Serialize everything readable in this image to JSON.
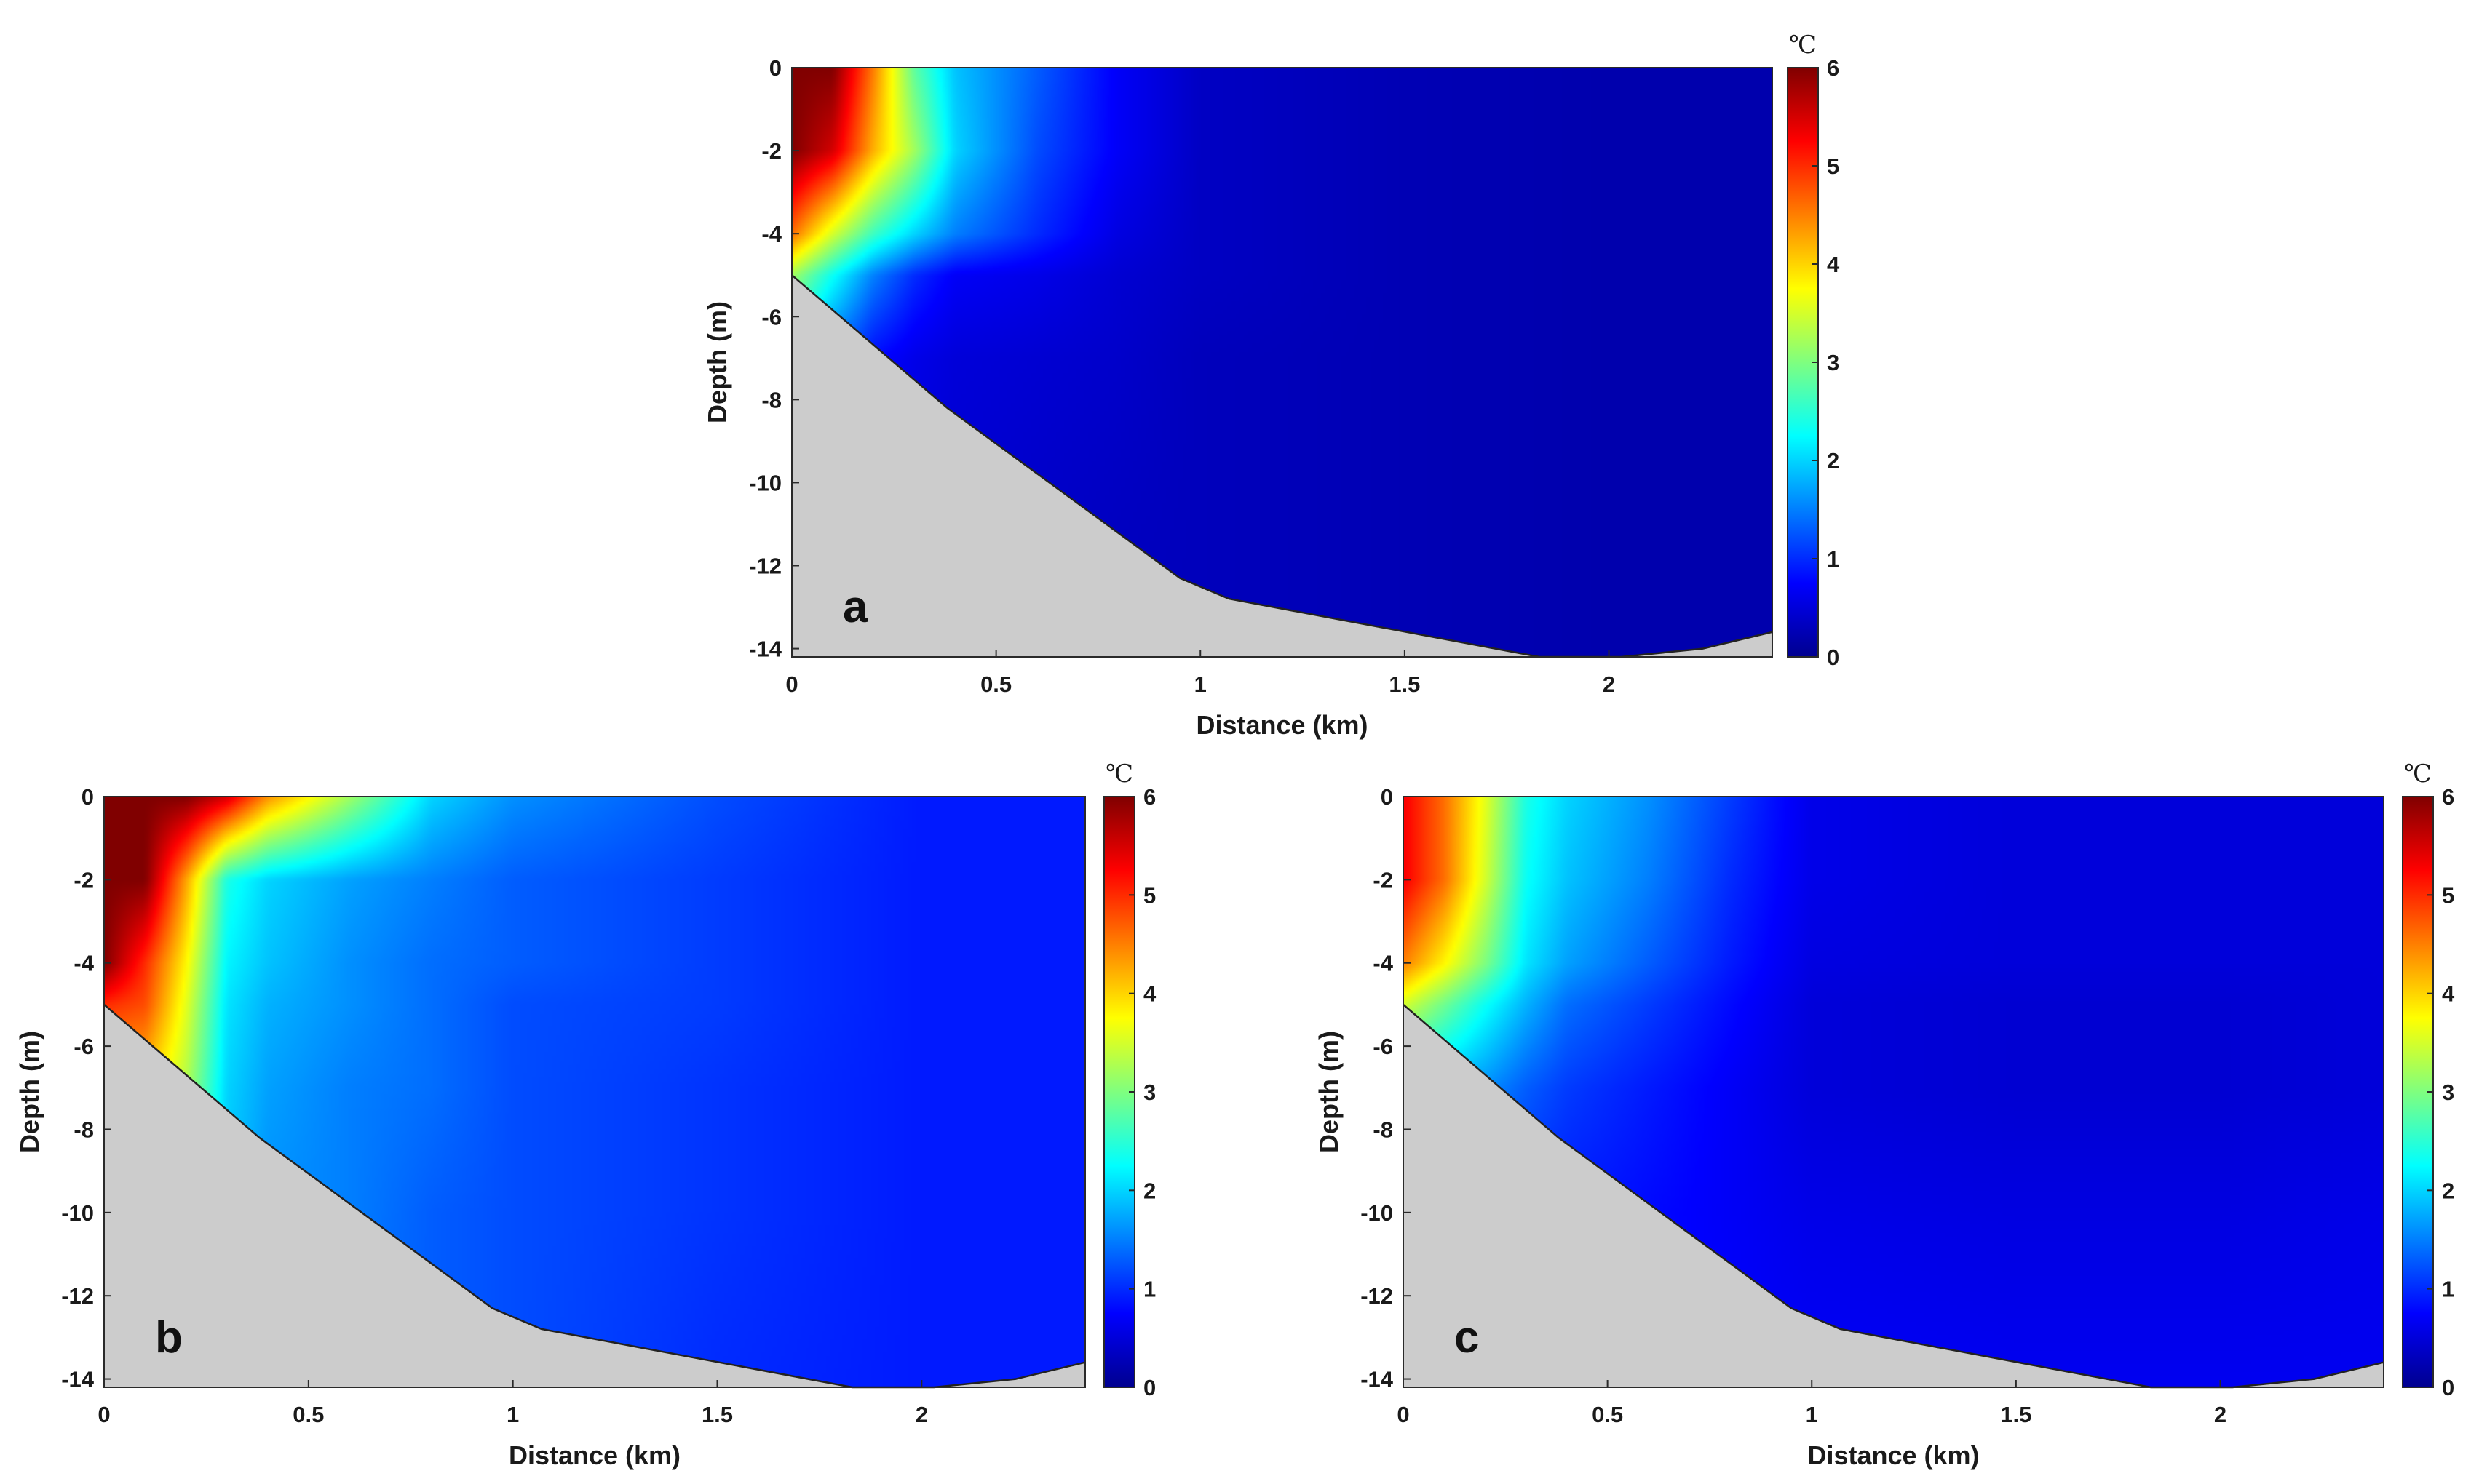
{
  "chart_data": [
    {
      "type": "heatmap",
      "panel_label": "a",
      "xlabel": "Distance (km)",
      "ylabel": "Depth (m)",
      "xlim": [
        0,
        2.4
      ],
      "ylim": [
        -14.2,
        0
      ],
      "xticks": [
        "0",
        "0.5",
        "1",
        "1.5",
        "2"
      ],
      "yticks": [
        "0",
        "-2",
        "-4",
        "-6",
        "-8",
        "-10",
        "-12",
        "-14"
      ],
      "colorbar": {
        "unit": "℃",
        "range": [
          0,
          6
        ],
        "ticks": [
          "0",
          "1",
          "2",
          "3",
          "4",
          "5",
          "6"
        ]
      },
      "bottom_profile": {
        "x": [
          0,
          0.38,
          0.95,
          1.07,
          1.83,
          2.03,
          2.23,
          2.4
        ],
        "depth": [
          -5.0,
          -8.2,
          -12.3,
          -12.8,
          -14.2,
          -14.2,
          -14.0,
          -13.6
        ]
      },
      "temperature_field": {
        "x": [
          0,
          0.1,
          0.2,
          0.3,
          0.4,
          0.6,
          0.8,
          1.0,
          1.5,
          2.0,
          2.4
        ],
        "depth": [
          0,
          -2,
          -4,
          -5,
          -7,
          -10,
          -14
        ],
        "values": [
          [
            6.0,
            6.0,
            4.5,
            2.8,
            1.9,
            1.3,
            0.7,
            0.35,
            0.25,
            0.2,
            0.2
          ],
          [
            6.0,
            5.5,
            4.2,
            3.2,
            2.0,
            1.2,
            0.7,
            0.35,
            0.25,
            0.2,
            0.2
          ],
          [
            4.6,
            3.5,
            2.6,
            2.0,
            1.5,
            1.0,
            0.55,
            0.35,
            0.25,
            0.2,
            0.2
          ],
          [
            3.2,
            2.3,
            1.5,
            1.0,
            0.7,
            0.6,
            0.45,
            0.35,
            0.25,
            0.2,
            0.2
          ],
          [
            2.0,
            1.3,
            0.8,
            0.6,
            0.5,
            0.45,
            0.4,
            0.3,
            0.25,
            0.2,
            0.2
          ],
          [
            1.0,
            0.8,
            0.6,
            0.5,
            0.45,
            0.4,
            0.35,
            0.3,
            0.25,
            0.2,
            0.2
          ],
          [
            0.6,
            0.5,
            0.45,
            0.4,
            0.4,
            0.35,
            0.3,
            0.3,
            0.25,
            0.2,
            0.2
          ]
        ]
      }
    },
    {
      "type": "heatmap",
      "panel_label": "b",
      "xlabel": "Distance (km)",
      "ylabel": "Depth (m)",
      "xlim": [
        0,
        2.4
      ],
      "ylim": [
        -14.2,
        0
      ],
      "xticks": [
        "0",
        "0.5",
        "1",
        "1.5",
        "2"
      ],
      "yticks": [
        "0",
        "-2",
        "-4",
        "-6",
        "-8",
        "-10",
        "-12",
        "-14"
      ],
      "colorbar": {
        "unit": "℃",
        "range": [
          0,
          6
        ],
        "ticks": [
          "0",
          "1",
          "2",
          "3",
          "4",
          "5",
          "6"
        ]
      },
      "bottom_profile": {
        "x": [
          0,
          0.38,
          0.95,
          1.07,
          1.83,
          2.03,
          2.23,
          2.4
        ],
        "depth": [
          -5.0,
          -8.2,
          -12.3,
          -12.8,
          -14.2,
          -14.2,
          -14.0,
          -13.6
        ]
      },
      "temperature_field": {
        "x": [
          0,
          0.1,
          0.2,
          0.3,
          0.4,
          0.6,
          0.8,
          1.0,
          1.5,
          2.0,
          2.4
        ],
        "depth": [
          0,
          -2,
          -4,
          -5,
          -7,
          -10,
          -14
        ],
        "values": [
          [
            6.0,
            6.0,
            6.0,
            5.5,
            4.4,
            3.2,
            2.0,
            1.6,
            1.2,
            0.9,
            0.9
          ],
          [
            6.0,
            6.0,
            4.3,
            2.4,
            2.0,
            1.7,
            1.5,
            1.3,
            1.1,
            0.9,
            0.9
          ],
          [
            6.0,
            5.0,
            3.8,
            2.2,
            1.9,
            1.6,
            1.4,
            1.3,
            1.1,
            0.9,
            0.9
          ],
          [
            5.0,
            4.8,
            3.6,
            2.1,
            1.8,
            1.6,
            1.4,
            1.2,
            1.1,
            0.9,
            0.9
          ],
          [
            4.0,
            4.0,
            3.3,
            2.0,
            1.7,
            1.5,
            1.4,
            1.2,
            1.05,
            0.9,
            0.9
          ],
          [
            3.0,
            3.0,
            3.0,
            1.9,
            1.6,
            1.5,
            1.3,
            1.2,
            1.05,
            0.9,
            0.9
          ],
          [
            2.5,
            2.5,
            2.5,
            1.8,
            1.6,
            1.4,
            1.3,
            1.2,
            1.0,
            0.9,
            0.9
          ]
        ]
      }
    },
    {
      "type": "heatmap",
      "panel_label": "c",
      "xlabel": "Distance (km)",
      "ylabel": "Depth (m)",
      "xlim": [
        0,
        2.4
      ],
      "ylim": [
        -14.2,
        0
      ],
      "xticks": [
        "0",
        "0.5",
        "1",
        "1.5",
        "2"
      ],
      "yticks": [
        "0",
        "-2",
        "-4",
        "-6",
        "-8",
        "-10",
        "-12",
        "-14"
      ],
      "colorbar": {
        "unit": "℃",
        "range": [
          0,
          6
        ],
        "ticks": [
          "0",
          "1",
          "2",
          "3",
          "4",
          "5",
          "6"
        ]
      },
      "bottom_profile": {
        "x": [
          0,
          0.38,
          0.95,
          1.07,
          1.83,
          2.03,
          2.23,
          2.4
        ],
        "depth": [
          -5.0,
          -8.2,
          -12.3,
          -12.8,
          -14.2,
          -14.2,
          -14.0,
          -13.6
        ]
      },
      "temperature_field": {
        "x": [
          0,
          0.1,
          0.2,
          0.3,
          0.4,
          0.6,
          0.8,
          1.0,
          1.5,
          2.0,
          2.4
        ],
        "depth": [
          0,
          -2,
          -4,
          -5,
          -7,
          -10,
          -14
        ],
        "values": [
          [
            5.3,
            4.6,
            3.6,
            2.4,
            2.0,
            1.6,
            1.1,
            0.6,
            0.5,
            0.5,
            0.5
          ],
          [
            5.3,
            4.6,
            3.5,
            2.3,
            1.9,
            1.5,
            1.0,
            0.6,
            0.5,
            0.5,
            0.5
          ],
          [
            4.5,
            3.8,
            3.0,
            2.1,
            1.7,
            1.3,
            0.9,
            0.55,
            0.5,
            0.5,
            0.5
          ],
          [
            3.5,
            2.9,
            2.3,
            1.8,
            1.4,
            1.1,
            0.8,
            0.5,
            0.45,
            0.45,
            0.5
          ],
          [
            2.0,
            1.8,
            1.6,
            1.3,
            1.1,
            0.9,
            0.7,
            0.5,
            0.45,
            0.45,
            0.5
          ],
          [
            1.2,
            1.1,
            1.0,
            0.95,
            0.9,
            0.8,
            0.7,
            0.6,
            0.55,
            0.55,
            0.6
          ],
          [
            0.9,
            0.9,
            0.9,
            0.85,
            0.85,
            0.8,
            0.75,
            0.7,
            0.65,
            0.65,
            0.65
          ]
        ]
      }
    }
  ],
  "colors": {
    "bottom_fill": "#cccccc",
    "bottom_edge": "#222222",
    "colormap": [
      "#00008f",
      "#0000ff",
      "#007fff",
      "#00ffff",
      "#7fff7f",
      "#ffff00",
      "#ff7f00",
      "#ff0000",
      "#800000"
    ]
  }
}
